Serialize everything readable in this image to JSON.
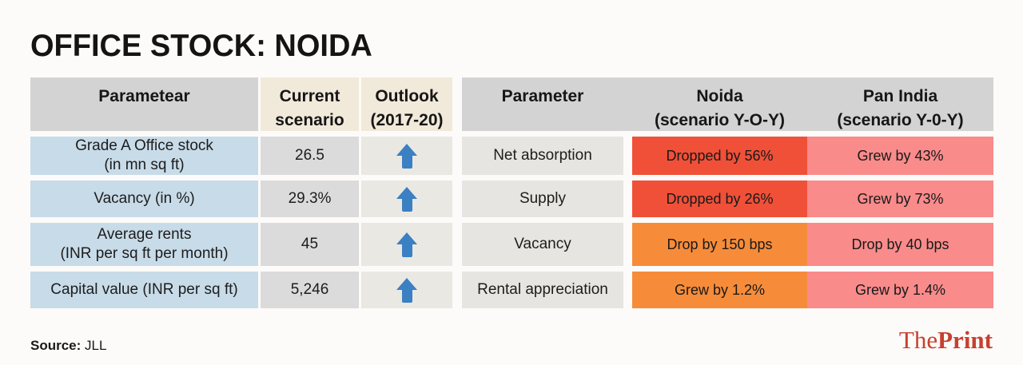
{
  "page": {
    "title": "OFFICE STOCK: NOIDA",
    "source_label": "Source:",
    "source_value": "JLL",
    "brand": {
      "the": "The",
      "print": "Print"
    }
  },
  "colors": {
    "drop_red": "#f05038",
    "drop_orange": "#f68c3a",
    "pan_salmon": "#f98b8b",
    "arrow_blue": "#3b80c2",
    "label_blue": "#c8dbe8",
    "header_gray": "#d3d3d3",
    "header_cream": "#f1e9da",
    "brand_red": "#c7402f"
  },
  "left_table": {
    "headers": {
      "parameter": "Parametear",
      "current": "Current\nscenario",
      "outlook": "Outlook\n(2017-20)"
    },
    "rows": [
      {
        "label": "Grade A Office stock\n(in mn sq ft)",
        "value": "26.5",
        "outlook": "up"
      },
      {
        "label": "Vacancy (in %)",
        "value": "29.3%",
        "outlook": "up"
      },
      {
        "label": "Average rents\n(INR per sq ft per month)",
        "value": "45",
        "outlook": "up"
      },
      {
        "label": "Capital value (INR per sq ft)",
        "value": "5,246",
        "outlook": "up"
      }
    ]
  },
  "right_table": {
    "headers": {
      "parameter": "Parameter",
      "noida": "Noida\n(scenario Y-O-Y)",
      "pan_india": "Pan India\n(scenario Y-0-Y)"
    },
    "rows": [
      {
        "parameter": "Net absorption",
        "noida": "Dropped by 56%",
        "noida_color": "#f05038",
        "pan": "Grew by 43%",
        "pan_color": "#f98b8b"
      },
      {
        "parameter": "Supply",
        "noida": "Dropped by 26%",
        "noida_color": "#f05038",
        "pan": "Grew by 73%",
        "pan_color": "#f98b8b"
      },
      {
        "parameter": "Vacancy",
        "noida": "Drop by 150 bps",
        "noida_color": "#f68c3a",
        "pan": "Drop by 40 bps",
        "pan_color": "#f98b8b"
      },
      {
        "parameter": "Rental appreciation",
        "noida": "Grew by 1.2%",
        "noida_color": "#f68c3a",
        "pan": "Grew by 1.4%",
        "pan_color": "#f98b8b"
      }
    ]
  },
  "chart_data": [
    {
      "type": "table",
      "title": "OFFICE STOCK: NOIDA",
      "columns": [
        "Parametear",
        "Current scenario",
        "Outlook (2017-20)"
      ],
      "rows": [
        [
          "Grade A Office stock (in mn sq ft)",
          "26.5",
          "up"
        ],
        [
          "Vacancy (in %)",
          "29.3%",
          "up"
        ],
        [
          "Average rents (INR per sq ft per month)",
          "45",
          "up"
        ],
        [
          "Capital value (INR per sq ft)",
          "5,246",
          "up"
        ]
      ],
      "notes": "Outlook column shows blue upward arrows for all four parameters"
    },
    {
      "type": "table",
      "columns": [
        "Parameter",
        "Noida (scenario Y-O-Y)",
        "Pan India (scenario Y-0-Y)"
      ],
      "rows": [
        [
          "Net absorption",
          "Dropped by 56%",
          "Grew by 43%"
        ],
        [
          "Supply",
          "Dropped by 26%",
          "Grew by 73%"
        ],
        [
          "Vacancy",
          "Drop by 150 bps",
          "Drop by 40 bps"
        ],
        [
          "Rental appreciation",
          "Grew by 1.2%",
          "Grew by 1.4%"
        ]
      ],
      "notes": "Noida cells red (#f05038) for dropped rows 1-2, orange (#f68c3a) for rows 3-4; Pan India cells salmon (#f98b8b); source JLL"
    }
  ]
}
